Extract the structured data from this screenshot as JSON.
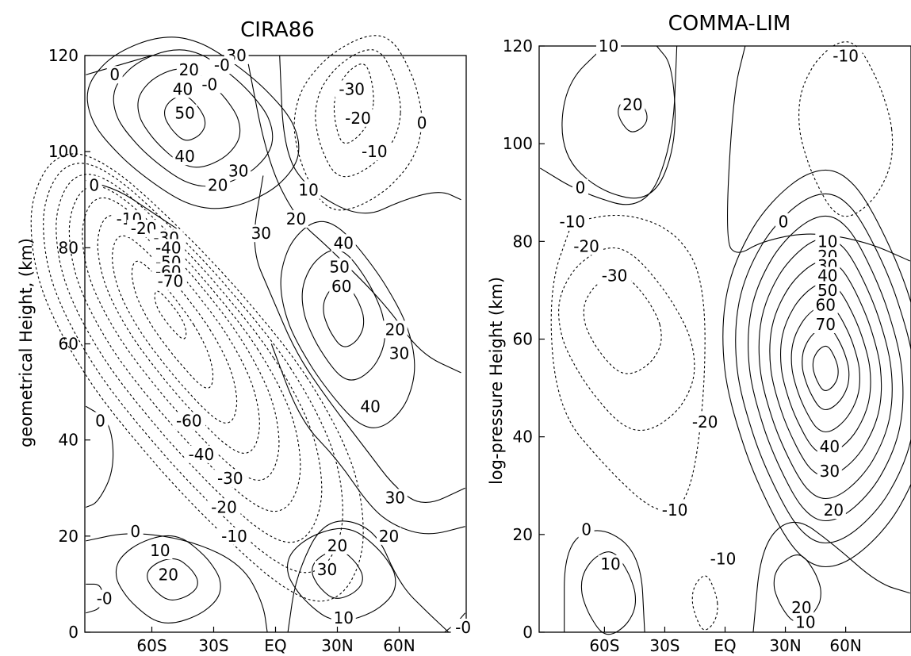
{
  "chart_data": [
    {
      "type": "contour",
      "title": "CIRA86",
      "xlabel": "",
      "ylabel": "geometrical Height, (km)",
      "x_ticks": [
        "60S",
        "30S",
        "EQ",
        "30N",
        "60N"
      ],
      "y_ticks": [
        "0",
        "20",
        "40",
        "60",
        "80",
        "100",
        "120"
      ],
      "ylim": [
        0,
        120
      ],
      "negative_contours_dashed": true,
      "contour_labels": [
        {
          "value": "-0",
          "lat": -32,
          "z": 114
        },
        {
          "value": "30",
          "lat": -19,
          "z": 120
        },
        {
          "value": "-0",
          "lat": -26,
          "z": 118
        },
        {
          "value": "20",
          "lat": -42,
          "z": 117
        },
        {
          "value": "0",
          "lat": -78,
          "z": 116
        },
        {
          "value": "40",
          "lat": -45,
          "z": 113
        },
        {
          "value": "50",
          "lat": -44,
          "z": 108
        },
        {
          "value": "40",
          "lat": -44,
          "z": 99
        },
        {
          "value": "30",
          "lat": -18,
          "z": 96
        },
        {
          "value": "20",
          "lat": -28,
          "z": 93
        },
        {
          "value": "0",
          "lat": -88,
          "z": 93
        },
        {
          "value": "-30",
          "lat": 37,
          "z": 113
        },
        {
          "value": "-20",
          "lat": 40,
          "z": 107
        },
        {
          "value": "0",
          "lat": 71,
          "z": 106
        },
        {
          "value": "-10",
          "lat": 48,
          "z": 100
        },
        {
          "value": "10",
          "lat": 16,
          "z": 92
        },
        {
          "value": "20",
          "lat": 10,
          "z": 86
        },
        {
          "value": "30",
          "lat": -7,
          "z": 83
        },
        {
          "value": "-10",
          "lat": -71,
          "z": 86
        },
        {
          "value": "-20",
          "lat": -64,
          "z": 84
        },
        {
          "value": "-30",
          "lat": -53,
          "z": 82
        },
        {
          "value": "-40",
          "lat": -52,
          "z": 80
        },
        {
          "value": "-50",
          "lat": -52,
          "z": 77
        },
        {
          "value": "-60",
          "lat": -52,
          "z": 75
        },
        {
          "value": "-70",
          "lat": -51,
          "z": 73
        },
        {
          "value": "40",
          "lat": 33,
          "z": 81
        },
        {
          "value": "50",
          "lat": 31,
          "z": 76
        },
        {
          "value": "60",
          "lat": 32,
          "z": 72
        },
        {
          "value": "20",
          "lat": 58,
          "z": 63
        },
        {
          "value": "30",
          "lat": 60,
          "z": 58
        },
        {
          "value": "40",
          "lat": 46,
          "z": 47
        },
        {
          "value": "-60",
          "lat": -42,
          "z": 44
        },
        {
          "value": "-40",
          "lat": -36,
          "z": 37
        },
        {
          "value": "-30",
          "lat": -22,
          "z": 32
        },
        {
          "value": "-20",
          "lat": -25,
          "z": 26
        },
        {
          "value": "-10",
          "lat": -20,
          "z": 20
        },
        {
          "value": "0",
          "lat": -85,
          "z": 44
        },
        {
          "value": "30",
          "lat": 58,
          "z": 28
        },
        {
          "value": "20",
          "lat": 55,
          "z": 20
        },
        {
          "value": "0",
          "lat": -68,
          "z": 21
        },
        {
          "value": "10",
          "lat": -56,
          "z": 17
        },
        {
          "value": "20",
          "lat": -52,
          "z": 12
        },
        {
          "value": "-0",
          "lat": -83,
          "z": 7
        },
        {
          "value": "20",
          "lat": 30,
          "z": 18
        },
        {
          "value": "30",
          "lat": 25,
          "z": 13
        },
        {
          "value": "10",
          "lat": 33,
          "z": 3
        },
        {
          "value": "-0",
          "lat": 91,
          "z": 1
        }
      ]
    },
    {
      "type": "contour",
      "title": "COMMA-LIM",
      "xlabel": "",
      "ylabel": "log-pressure Height (km)",
      "x_ticks": [
        "60S",
        "30S",
        "EQ",
        "30N",
        "60N"
      ],
      "y_ticks": [
        "0",
        "20",
        "40",
        "60",
        "80",
        "100",
        "120"
      ],
      "ylim": [
        0,
        120
      ],
      "negative_contours_dashed": true,
      "contour_labels": [
        {
          "value": "10",
          "lat": -58,
          "z": 120
        },
        {
          "value": "-10",
          "lat": 60,
          "z": 118
        },
        {
          "value": "20",
          "lat": -46,
          "z": 108
        },
        {
          "value": "0",
          "lat": -72,
          "z": 91
        },
        {
          "value": "0",
          "lat": 29,
          "z": 84
        },
        {
          "value": "-10",
          "lat": -76,
          "z": 84
        },
        {
          "value": "-20",
          "lat": -69,
          "z": 79
        },
        {
          "value": "-30",
          "lat": -55,
          "z": 73
        },
        {
          "value": "10",
          "lat": 51,
          "z": 80
        },
        {
          "value": "20",
          "lat": 51,
          "z": 77
        },
        {
          "value": "30",
          "lat": 51,
          "z": 75
        },
        {
          "value": "40",
          "lat": 51,
          "z": 73
        },
        {
          "value": "50",
          "lat": 51,
          "z": 70
        },
        {
          "value": "60",
          "lat": 50,
          "z": 67
        },
        {
          "value": "70",
          "lat": 50,
          "z": 63
        },
        {
          "value": "-20",
          "lat": -10,
          "z": 43
        },
        {
          "value": "40",
          "lat": 52,
          "z": 38
        },
        {
          "value": "30",
          "lat": 52,
          "z": 33
        },
        {
          "value": "20",
          "lat": 54,
          "z": 25
        },
        {
          "value": "-10",
          "lat": -25,
          "z": 25
        },
        {
          "value": "0",
          "lat": -69,
          "z": 21
        },
        {
          "value": "-10",
          "lat": -1,
          "z": 15
        },
        {
          "value": "10",
          "lat": -57,
          "z": 14
        },
        {
          "value": "20",
          "lat": 38,
          "z": 5
        },
        {
          "value": "10",
          "lat": 40,
          "z": 2
        }
      ]
    }
  ]
}
